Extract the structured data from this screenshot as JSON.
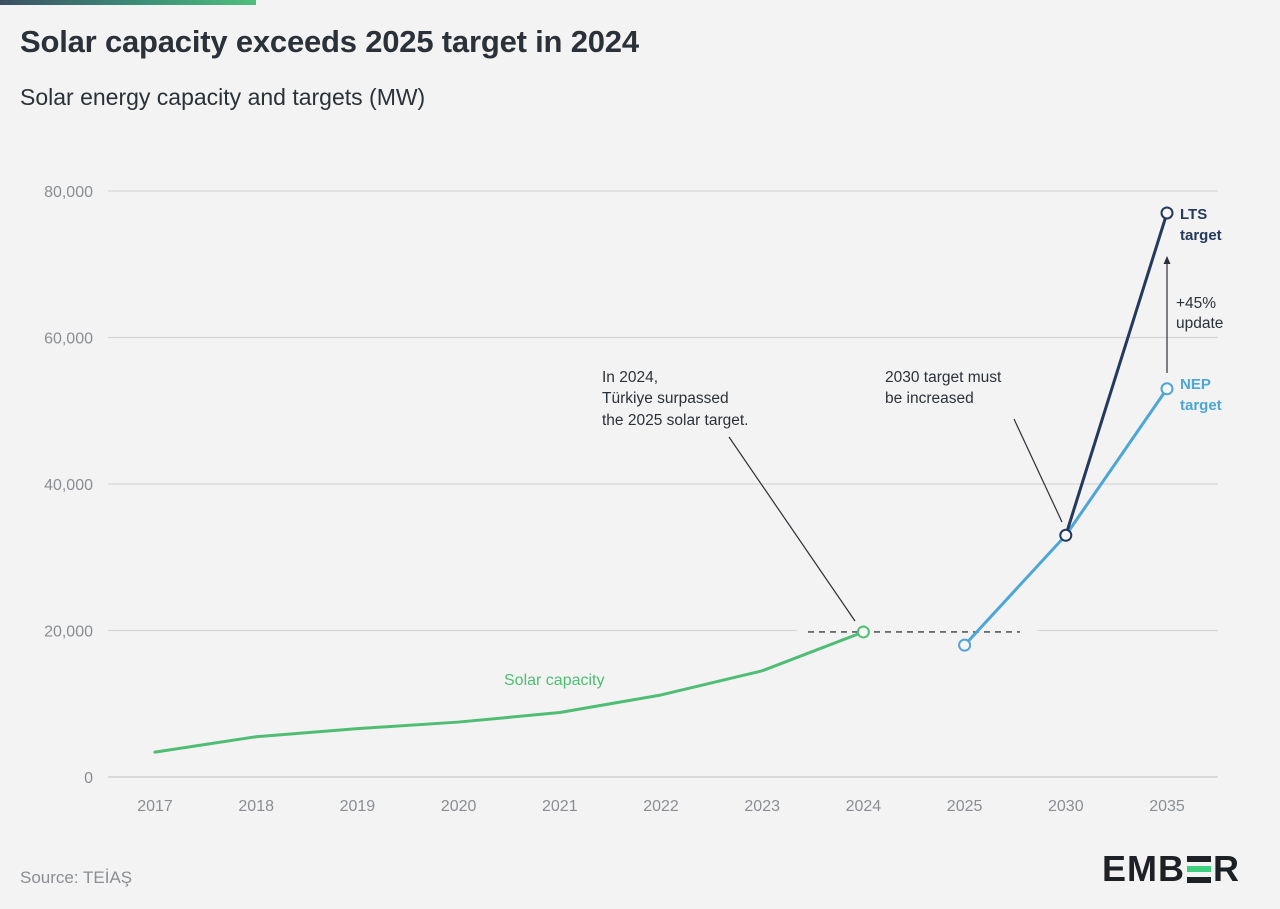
{
  "header": {
    "title": "Solar capacity exceeds 2025 target in 2024",
    "subtitle": "Solar energy capacity and targets (MW)"
  },
  "footer": {
    "source": "Source: TEİAŞ",
    "logo_text": "EMBER"
  },
  "colors": {
    "solar": "#4fbd74",
    "nep": "#4da6d6",
    "lts": "#24395c",
    "grid": "#d6d6d6",
    "tick": "#8a8e93",
    "annotation": "#2b3138"
  },
  "chart_data": {
    "type": "line",
    "title": "Solar capacity exceeds 2025 target in 2024",
    "subtitle": "Solar energy capacity and targets (MW)",
    "xlabel": "",
    "ylabel": "",
    "categories": [
      "2017",
      "2018",
      "2019",
      "2020",
      "2021",
      "2022",
      "2023",
      "2024",
      "2025",
      "2030",
      "2035"
    ],
    "ylim": [
      0,
      80000
    ],
    "yticks": [
      0,
      20000,
      40000,
      60000,
      80000
    ],
    "ytick_labels": [
      "0",
      "20,000",
      "40,000",
      "60,000",
      "80,000"
    ],
    "grid": true,
    "series": [
      {
        "name": "Solar capacity",
        "label": "Solar capacity",
        "points": [
          {
            "x": "2017",
            "y": 3400
          },
          {
            "x": "2018",
            "y": 5500
          },
          {
            "x": "2019",
            "y": 6600
          },
          {
            "x": "2020",
            "y": 7500
          },
          {
            "x": "2021",
            "y": 8800
          },
          {
            "x": "2022",
            "y": 11200
          },
          {
            "x": "2023",
            "y": 14500
          },
          {
            "x": "2024",
            "y": 19800
          }
        ],
        "markers": [
          "2024"
        ]
      },
      {
        "name": "NEP target",
        "label_line1": "NEP",
        "label_line2": "target",
        "points": [
          {
            "x": "2025",
            "y": 18000
          },
          {
            "x": "2030",
            "y": 33000
          },
          {
            "x": "2035",
            "y": 53000
          }
        ],
        "markers": [
          "2025",
          "2035"
        ]
      },
      {
        "name": "LTS target",
        "label_line1": "LTS",
        "label_line2": "target",
        "points": [
          {
            "x": "2030",
            "y": 33000
          },
          {
            "x": "2035",
            "y": 77000
          }
        ],
        "markers": [
          "2030",
          "2035"
        ]
      }
    ],
    "reference_line": {
      "y": 19800,
      "from": "2023",
      "to": "2025",
      "style": "dashed"
    },
    "annotations": [
      {
        "lines": [
          "In 2024,",
          "Türkiye surpassed",
          "the 2025 solar target."
        ]
      },
      {
        "lines": [
          "2030 target must",
          "be increased"
        ]
      },
      {
        "lines": [
          "+45%",
          "update"
        ]
      }
    ]
  }
}
